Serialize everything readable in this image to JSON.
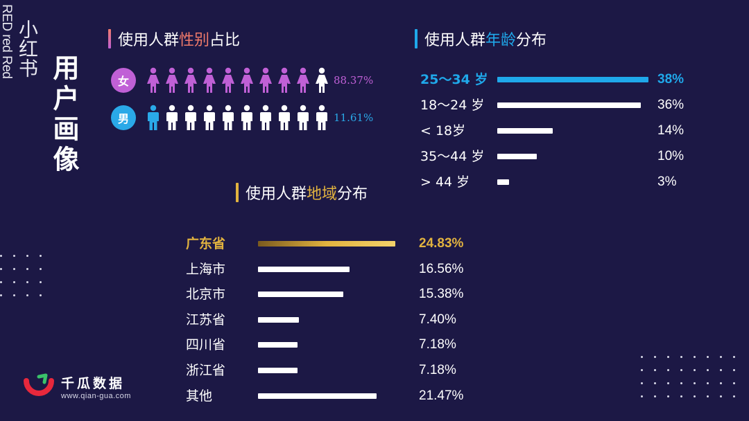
{
  "brand": {
    "vertical_red": "RED red Red",
    "vertical_name": "小红书",
    "vertical_title": "用户画像"
  },
  "logo": {
    "name": "千瓜数据",
    "url": "www.qian-gua.com"
  },
  "gender": {
    "title_prefix": "使用人群",
    "title_highlight": "性别",
    "title_suffix": "占比",
    "rows": [
      {
        "badge": "女",
        "icon": "female-person-icon",
        "filled_fraction": 0.8837,
        "pct": "88.37%",
        "color": "#c060d6"
      },
      {
        "badge": "男",
        "icon": "male-person-icon",
        "filled_fraction": 0.1161,
        "pct": "11.61%",
        "color": "#2aa9e8"
      }
    ]
  },
  "chart_data": [
    {
      "type": "bar",
      "orientation": "horizontal",
      "title": "使用人群年龄分布",
      "title_prefix": "使用人群",
      "title_highlight": "年龄",
      "title_suffix": "分布",
      "categories": [
        "25～34 岁",
        "18～24 岁",
        "< 18岁",
        "35～44 岁",
        "> 44 岁"
      ],
      "values": [
        38,
        36,
        14,
        10,
        3
      ],
      "value_labels": [
        "38%",
        "36%",
        "14%",
        "10%",
        "3%"
      ],
      "highlight_index": 0,
      "highlight_color": "#1fa8ea",
      "bar_color": "#ffffff",
      "xlim": [
        0,
        38
      ]
    },
    {
      "type": "bar",
      "orientation": "horizontal",
      "title": "使用人群地域分布",
      "title_prefix": "使用人群",
      "title_highlight": "地域",
      "title_suffix": "分布",
      "categories": [
        "广东省",
        "上海市",
        "北京市",
        "江苏省",
        "四川省",
        "浙江省",
        "其他"
      ],
      "values": [
        24.83,
        16.56,
        15.38,
        7.4,
        7.18,
        7.18,
        21.47
      ],
      "value_labels": [
        "24.83%",
        "16.56%",
        "15.38%",
        "7.40%",
        "7.18%",
        "7.18%",
        "21.47%"
      ],
      "highlight_index": 0,
      "highlight_color": "#e2b33f",
      "bar_color": "#ffffff",
      "xlim": [
        0,
        24.83
      ]
    }
  ],
  "colors": {
    "background": "#1c1845",
    "female": "#c060d6",
    "male": "#2aa9e8",
    "gender_title_accent": "#f07a6a",
    "age_accent": "#1fa8ea",
    "region_accent": "#e2b33f",
    "logo_red": "#e8283c",
    "logo_green": "#3ac26a"
  }
}
